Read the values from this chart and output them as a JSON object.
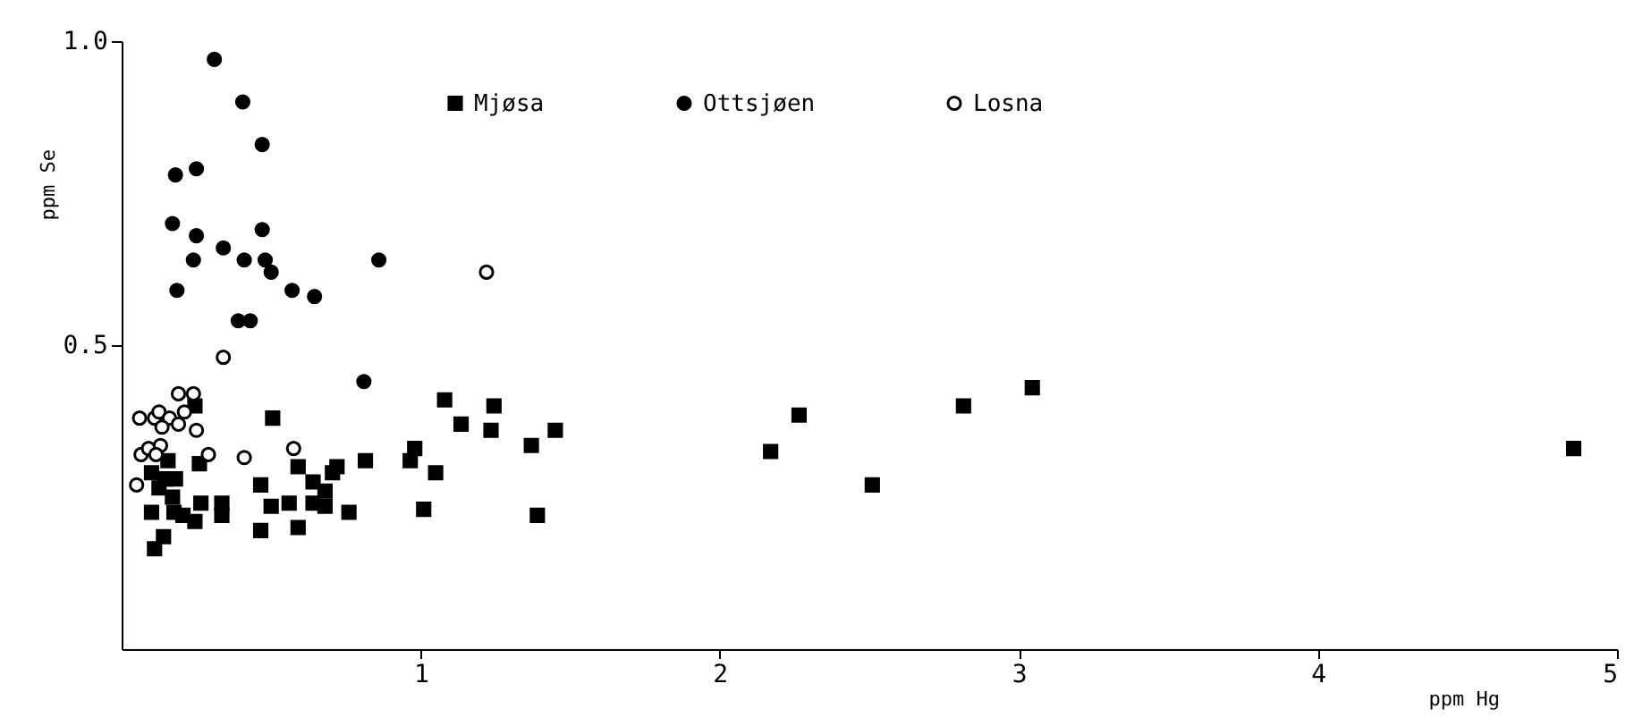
{
  "chart_data": {
    "type": "scatter",
    "xlabel": "ppm Hg",
    "ylabel": "ppm Se",
    "xlim": [
      0,
      5
    ],
    "ylim": [
      0,
      1
    ],
    "xticks": [
      1,
      2,
      3,
      4,
      5
    ],
    "yticks": [
      0.5,
      {
        "value": 1,
        "label": "1.0"
      }
    ],
    "grid": false,
    "legend": "top",
    "series": [
      {
        "name": "Mjøsa",
        "color": "#000000",
        "marker": "square",
        "x": [
          0.245,
          0.505,
          0.155,
          0.26,
          0.1,
          0.18,
          0.145,
          0.125,
          0.17,
          0.465,
          0.59,
          0.64,
          0.68,
          0.705,
          0.72,
          0.815,
          0.965,
          0.98,
          1.05,
          1.08,
          1.135,
          1.245,
          1.235,
          1.37,
          1.45,
          1.39,
          0.1,
          0.175,
          0.205,
          0.245,
          0.265,
          0.335,
          0.335,
          0.465,
          0.5,
          0.56,
          0.59,
          0.64,
          0.68,
          0.76,
          1.01,
          0.14,
          0.11,
          2.265,
          2.17,
          2.51,
          2.815,
          3.045,
          4.855
        ],
        "values": [
          0.4,
          0.38,
          0.31,
          0.305,
          0.29,
          0.28,
          0.28,
          0.265,
          0.25,
          0.27,
          0.3,
          0.275,
          0.26,
          0.29,
          0.3,
          0.31,
          0.31,
          0.33,
          0.29,
          0.41,
          0.37,
          0.4,
          0.36,
          0.335,
          0.36,
          0.22,
          0.225,
          0.225,
          0.22,
          0.21,
          0.24,
          0.24,
          0.22,
          0.195,
          0.235,
          0.24,
          0.2,
          0.24,
          0.235,
          0.225,
          0.23,
          0.185,
          0.165,
          0.385,
          0.325,
          0.27,
          0.4,
          0.43,
          0.33
        ]
      },
      {
        "name": "Ottsjøen",
        "color": "#000000",
        "marker": "circle",
        "x": [
          0.31,
          0.405,
          0.47,
          0.18,
          0.25,
          0.17,
          0.25,
          0.47,
          0.34,
          0.24,
          0.41,
          0.48,
          0.5,
          0.86,
          0.57,
          0.645,
          0.185,
          0.39,
          0.43,
          0.81
        ],
        "values": [
          0.97,
          0.9,
          0.83,
          0.78,
          0.79,
          0.7,
          0.68,
          0.69,
          0.66,
          0.64,
          0.64,
          0.64,
          0.62,
          0.64,
          0.59,
          0.58,
          0.59,
          0.54,
          0.54,
          0.44
        ]
      },
      {
        "name": "Losna",
        "color": "#ffffff",
        "marker": "circle",
        "x": [
          1.22,
          0.34,
          0.19,
          0.24,
          0.06,
          0.11,
          0.125,
          0.16,
          0.21,
          0.135,
          0.19,
          0.25,
          0.065,
          0.09,
          0.13,
          0.115,
          0.29,
          0.41,
          0.575,
          0.05
        ],
        "values": [
          0.62,
          0.48,
          0.42,
          0.42,
          0.38,
          0.38,
          0.39,
          0.38,
          0.39,
          0.365,
          0.37,
          0.36,
          0.32,
          0.33,
          0.335,
          0.32,
          0.32,
          0.315,
          0.33,
          0.27
        ]
      }
    ]
  }
}
